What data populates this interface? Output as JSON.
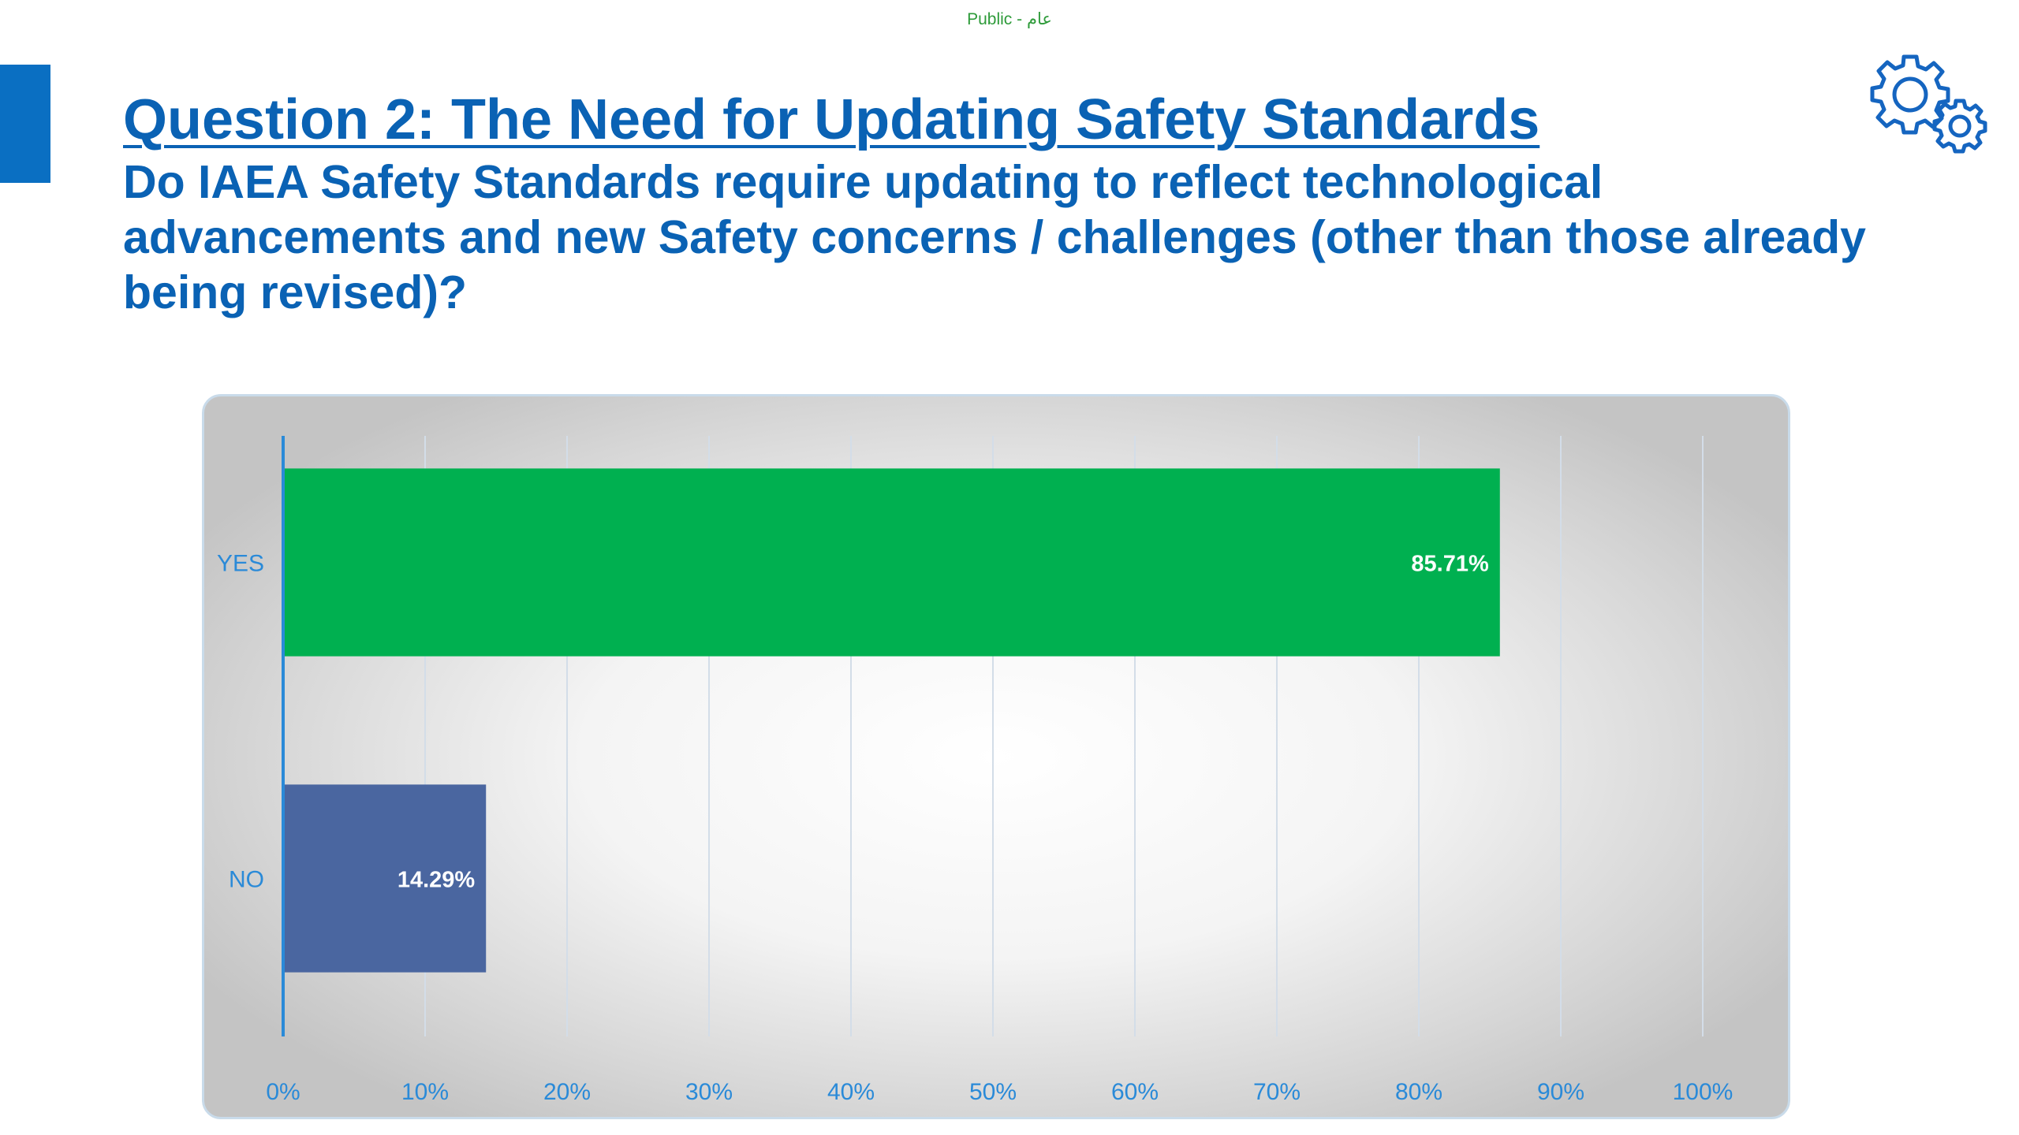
{
  "header": {
    "classification": "Public - عام",
    "title": "Question 2: The Need for Updating Safety Standards",
    "subtitle": "Do IAEA Safety Standards require updating to reflect technological advancements and new Safety concerns / challenges (other than those already being revised)?"
  },
  "icons": {
    "decoration": "gears-icon"
  },
  "colors": {
    "accent": "#0a6fc2",
    "title": "#0a62b4",
    "classification": "#2e9b3a",
    "axis": "#2a8ad8"
  },
  "chart_data": {
    "type": "bar",
    "orientation": "horizontal",
    "categories": [
      "YES",
      "NO"
    ],
    "values": [
      85.71,
      14.29
    ],
    "value_labels": [
      "85.71%",
      "14.29%"
    ],
    "bar_colors": [
      "#00b050",
      "#4a66a0"
    ],
    "xlim": [
      0,
      100
    ],
    "x_ticks": [
      "0%",
      "10%",
      "20%",
      "30%",
      "40%",
      "50%",
      "60%",
      "70%",
      "80%",
      "90%",
      "100%"
    ],
    "grid": true,
    "legend": "none",
    "title": "",
    "xlabel": "",
    "ylabel": ""
  }
}
